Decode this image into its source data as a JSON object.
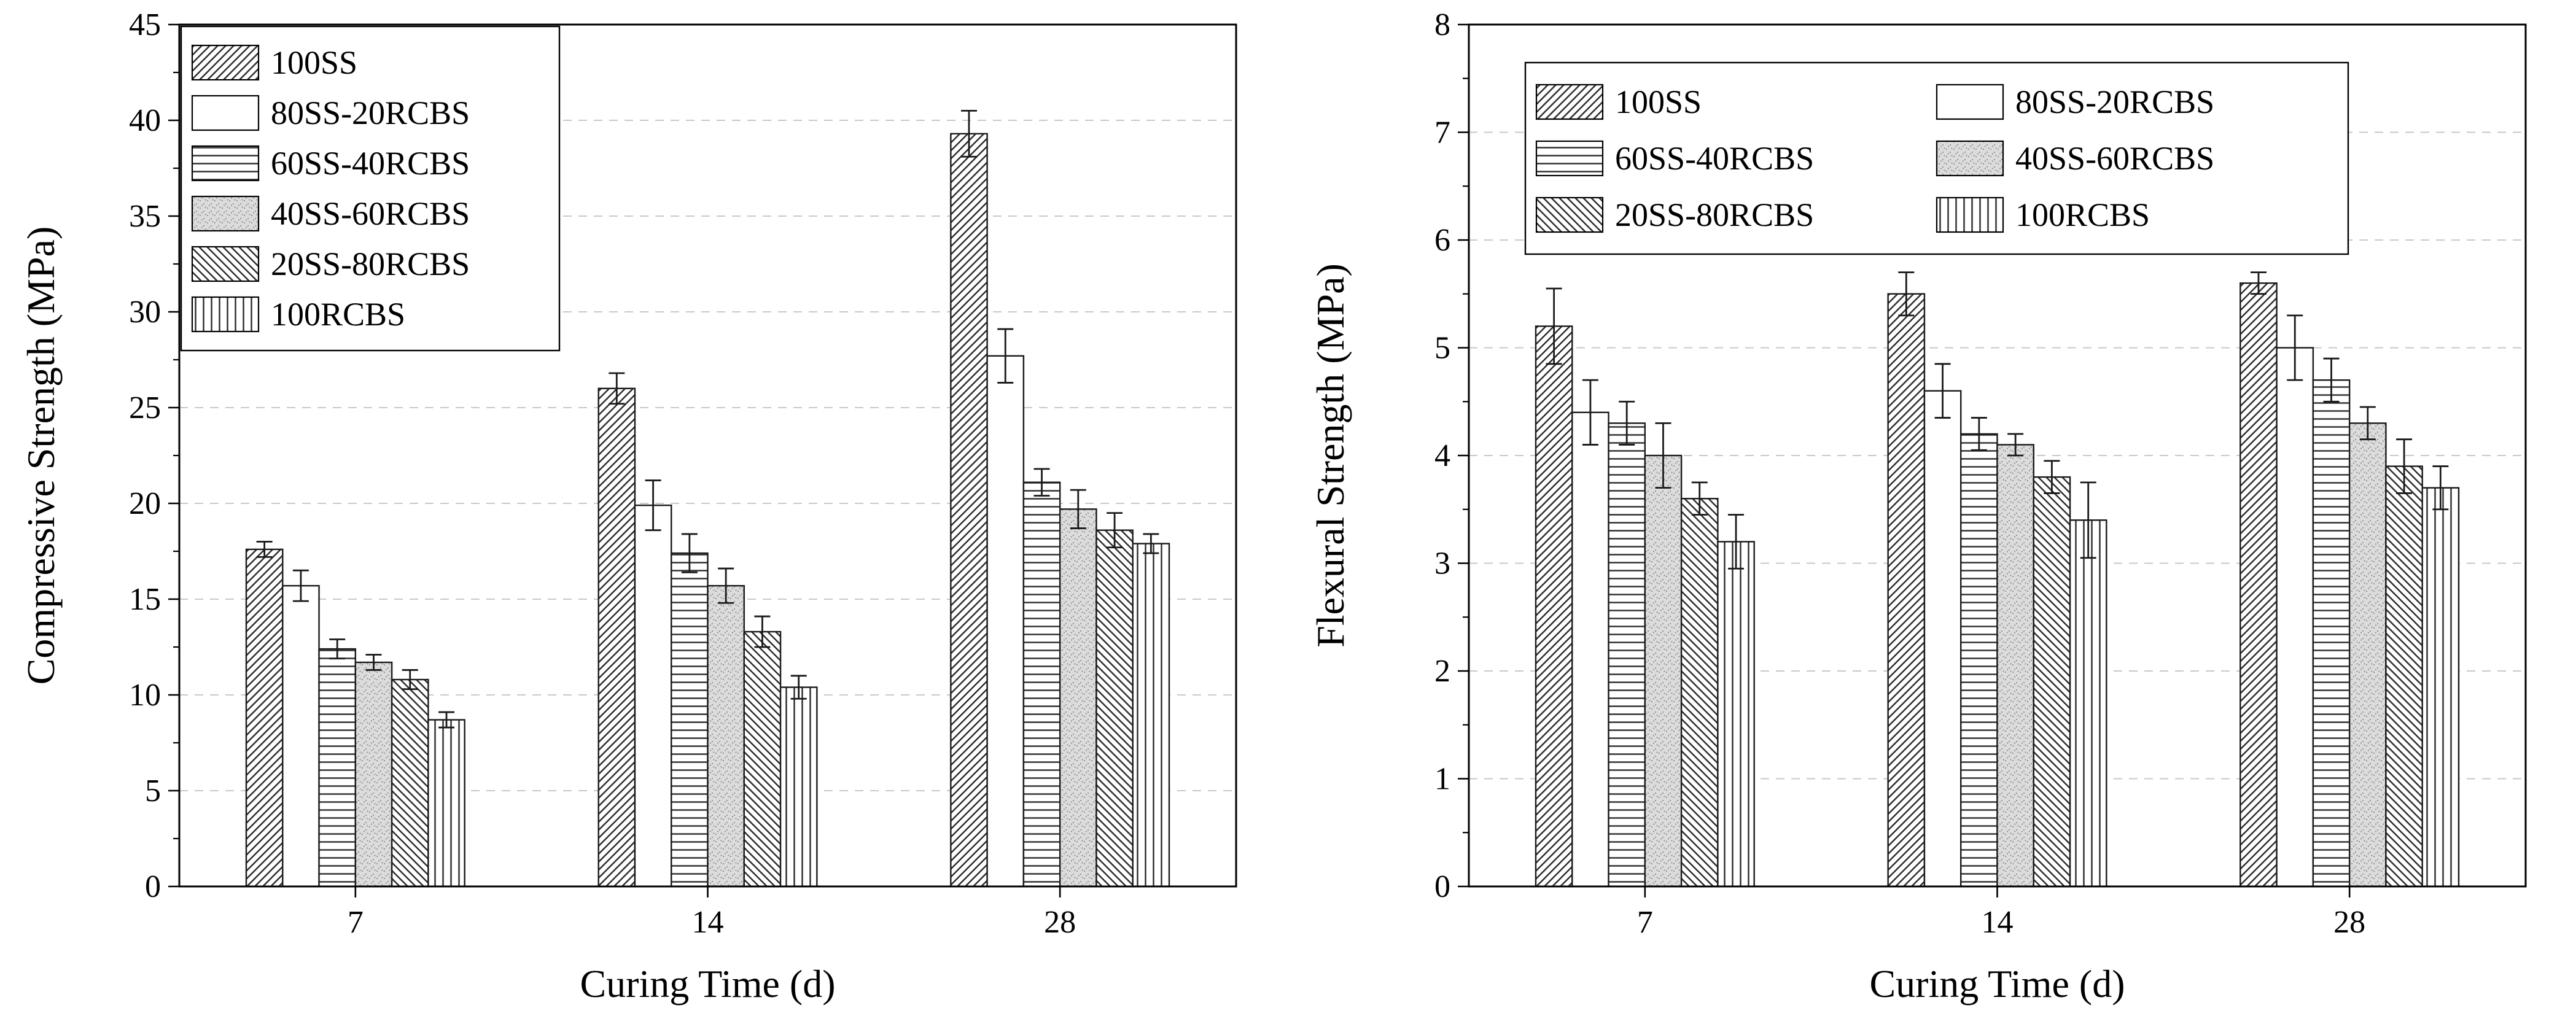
{
  "figure": {
    "background": "#ffffff",
    "text_color": "#000000",
    "grid_color": "#c9c9c9",
    "bar_outline_color": "#1a1a1a",
    "hatch_color": "#2a2a2a",
    "gray_fill": "#dcdcdc"
  },
  "chart_data": [
    {
      "id": "compressive-strength-chart",
      "type": "bar",
      "title": "",
      "xlabel": "Curing Time (d)",
      "ylabel": "Compressive Strength (MPa)",
      "categories": [
        "7",
        "14",
        "28"
      ],
      "ylim": [
        0,
        45
      ],
      "ytick_step": 5,
      "grid": "dashed-horizontal",
      "legend": {
        "position": "top-left-inside",
        "columns": 1
      },
      "series": [
        {
          "name": "100SS",
          "pattern": "diagonal-forward",
          "values": [
            17.6,
            26.0,
            39.3
          ],
          "errors": [
            0.4,
            0.8,
            1.2
          ]
        },
        {
          "name": "80SS-20RCBS",
          "pattern": "plain-white",
          "values": [
            15.7,
            19.9,
            27.7
          ],
          "errors": [
            0.8,
            1.3,
            1.4
          ]
        },
        {
          "name": "60SS-40RCBS",
          "pattern": "horizontal-lines",
          "values": [
            12.4,
            17.4,
            21.1
          ],
          "errors": [
            0.5,
            1.0,
            0.7
          ]
        },
        {
          "name": "40SS-60RCBS",
          "pattern": "gray-stipple",
          "values": [
            11.7,
            15.7,
            19.7
          ],
          "errors": [
            0.4,
            0.9,
            1.0
          ]
        },
        {
          "name": "20SS-80RCBS",
          "pattern": "diagonal-back",
          "values": [
            10.8,
            13.3,
            18.6
          ],
          "errors": [
            0.5,
            0.8,
            0.9
          ]
        },
        {
          "name": "100RCBS",
          "pattern": "vertical-lines",
          "values": [
            8.7,
            10.4,
            17.9
          ],
          "errors": [
            0.4,
            0.6,
            0.5
          ]
        }
      ]
    },
    {
      "id": "flexural-strength-chart",
      "type": "bar",
      "title": "",
      "xlabel": "Curing Time (d)",
      "ylabel": "Flexural Strength (MPa)",
      "categories": [
        "7",
        "14",
        "28"
      ],
      "ylim": [
        0,
        8
      ],
      "ytick_step": 1,
      "grid": "dashed-horizontal",
      "legend": {
        "position": "top-inside",
        "columns": 2
      },
      "series": [
        {
          "name": "100SS",
          "pattern": "diagonal-forward",
          "values": [
            5.2,
            5.5,
            5.6
          ],
          "errors": [
            0.35,
            0.2,
            0.1
          ]
        },
        {
          "name": "80SS-20RCBS",
          "pattern": "plain-white",
          "values": [
            4.4,
            4.6,
            5.0
          ],
          "errors": [
            0.3,
            0.25,
            0.3
          ]
        },
        {
          "name": "60SS-40RCBS",
          "pattern": "horizontal-lines",
          "values": [
            4.3,
            4.2,
            4.7
          ],
          "errors": [
            0.2,
            0.15,
            0.2
          ]
        },
        {
          "name": "40SS-60RCBS",
          "pattern": "gray-stipple",
          "values": [
            4.0,
            4.1,
            4.3
          ],
          "errors": [
            0.3,
            0.1,
            0.15
          ]
        },
        {
          "name": "20SS-80RCBS",
          "pattern": "diagonal-back",
          "values": [
            3.6,
            3.8,
            3.9
          ],
          "errors": [
            0.15,
            0.15,
            0.25
          ]
        },
        {
          "name": "100RCBS",
          "pattern": "vertical-lines",
          "values": [
            3.2,
            3.4,
            3.7
          ],
          "errors": [
            0.25,
            0.35,
            0.2
          ]
        }
      ]
    }
  ]
}
